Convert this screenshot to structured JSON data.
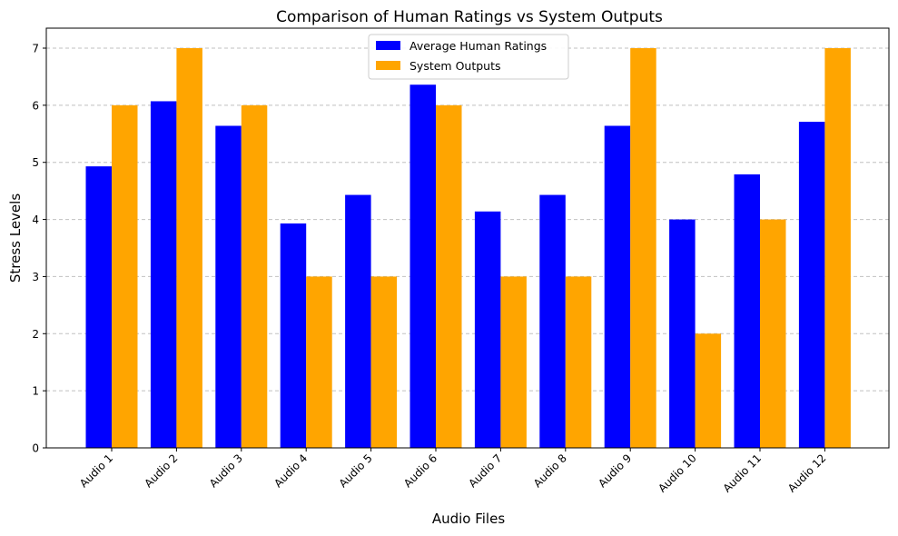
{
  "chart_data": {
    "type": "bar",
    "title": "Comparison of Human Ratings vs System Outputs",
    "xlabel": "Audio Files",
    "ylabel": "Stress Levels",
    "categories": [
      "Audio 1",
      "Audio 2",
      "Audio 3",
      "Audio 4",
      "Audio 5",
      "Audio 6",
      "Audio 7",
      "Audio 8",
      "Audio 9",
      "Audio 10",
      "Audio 11",
      "Audio 12"
    ],
    "series": [
      {
        "name": "Average Human Ratings",
        "color": "#0000ff",
        "values": [
          4.93,
          6.07,
          5.64,
          3.93,
          4.43,
          6.36,
          4.14,
          4.43,
          5.64,
          4.0,
          4.79,
          5.71
        ]
      },
      {
        "name": "System Outputs",
        "color": "#ffa500",
        "values": [
          6,
          7,
          6,
          3,
          3,
          6,
          3,
          3,
          7,
          2,
          4,
          7
        ]
      }
    ],
    "ylim": [
      0,
      7.35
    ],
    "yticks": [
      0,
      1,
      2,
      3,
      4,
      5,
      6,
      7
    ],
    "grid": {
      "axis": "y",
      "style": "dashed",
      "color": "#c0c0c0"
    },
    "legend": {
      "placement": "top-center"
    }
  }
}
